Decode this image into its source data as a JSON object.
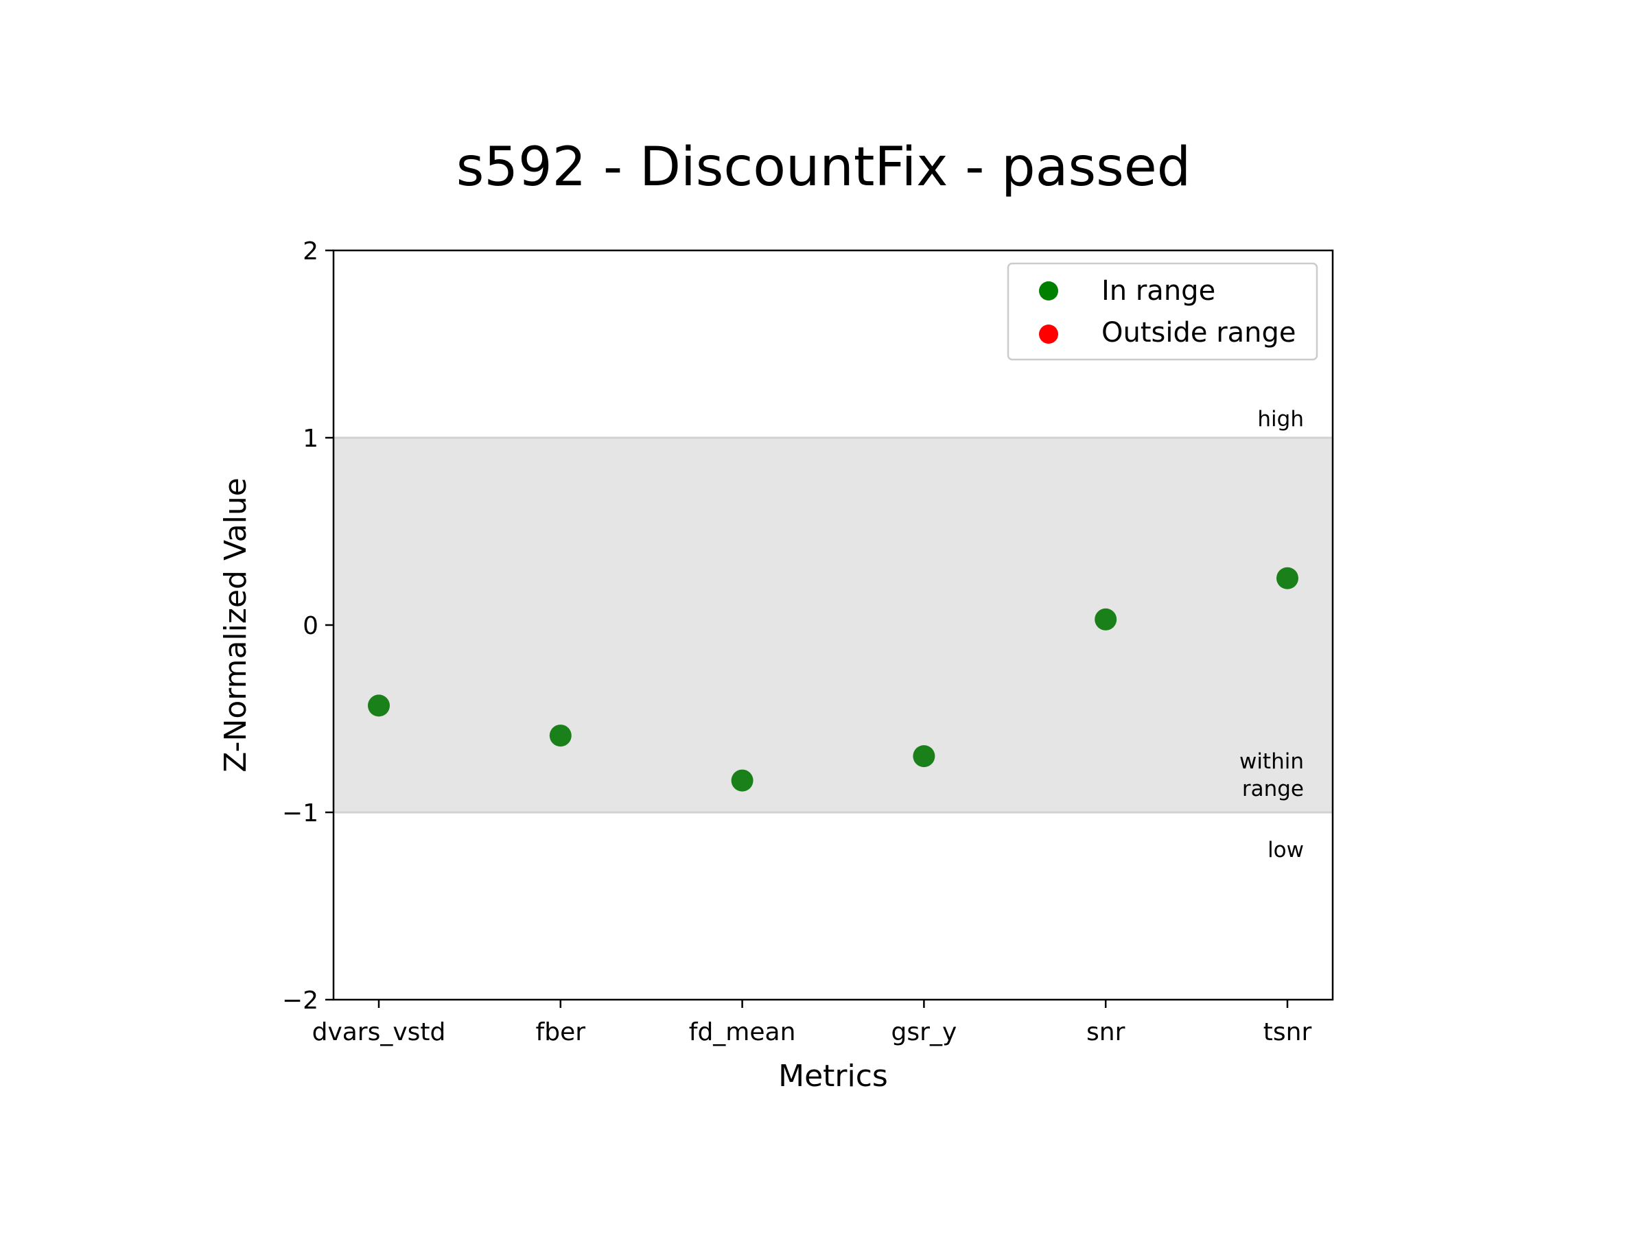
{
  "chart_data": {
    "type": "scatter",
    "title": "s592 - DiscountFix - passed",
    "xlabel": "Metrics",
    "ylabel": "Z-Normalized Value",
    "categories": [
      "dvars_vstd",
      "fber",
      "fd_mean",
      "gsr_y",
      "snr",
      "tsnr"
    ],
    "values": [
      -0.43,
      -0.59,
      -0.83,
      -0.7,
      0.03,
      0.25
    ],
    "ylim": [
      -2,
      2
    ],
    "yticks": [
      2,
      1,
      0,
      -1,
      -2
    ],
    "ytick_labels": [
      "2",
      "1",
      "0",
      "−1",
      "−2"
    ],
    "range_band": {
      "low": -1,
      "high": 1,
      "color": "#e5e5e5",
      "edge_color": "#d2d2d2"
    },
    "band_labels": {
      "high": "high",
      "within": [
        "within",
        "range"
      ],
      "low": "low"
    },
    "legend": {
      "position": "top-right",
      "entries": [
        {
          "label": "In range",
          "color": "#008000"
        },
        {
          "label": "Outside range",
          "color": "#ff0000"
        }
      ]
    },
    "point_color": "#1a801a",
    "grid": false
  }
}
